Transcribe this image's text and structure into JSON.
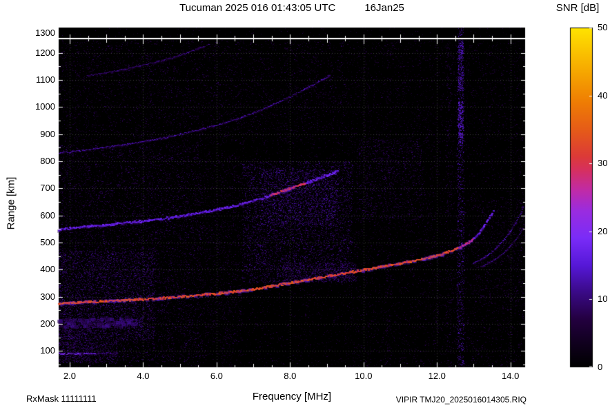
{
  "chart_data": {
    "type": "heatmap",
    "subtype": "ionogram",
    "station": "Tucuman",
    "title": "Tucuman 2025 016 01:43:05 UTC",
    "date_label": "16Jan25",
    "colorbar_label": "SNR [dB]",
    "xlabel": "Frequency [MHz]",
    "ylabel": "Range [km]",
    "rx_mask_label": "RxMask 11111111",
    "file_label": "VIPIR  TMJ20_2025016014305.RIQ",
    "xlim": [
      1.7,
      14.4
    ],
    "ylim_main": [
      40,
      1250
    ],
    "ylim_strip": [
      1255,
      1300
    ],
    "x_ticks": [
      {
        "v": 2,
        "label": "2.0"
      },
      {
        "v": 4,
        "label": "4.0"
      },
      {
        "v": 6,
        "label": "6.0"
      },
      {
        "v": 8,
        "label": "8.0"
      },
      {
        "v": 10,
        "label": "10.0"
      },
      {
        "v": 12,
        "label": "12.0"
      },
      {
        "v": 14,
        "label": "14.0"
      }
    ],
    "y_ticks": [
      100,
      200,
      300,
      400,
      500,
      600,
      700,
      800,
      900,
      1000,
      1100,
      1200,
      1300
    ],
    "colorbar_range": [
      0,
      50
    ],
    "colorbar_ticks": [
      0,
      10,
      20,
      30,
      40,
      50
    ],
    "grid": {
      "x_step": 2,
      "y_step": 100,
      "color": "#3d3d3d"
    },
    "background_color": "#000000",
    "colormap": [
      [
        0.0,
        "#000000"
      ],
      [
        0.07,
        "#10001e"
      ],
      [
        0.14,
        "#23003f"
      ],
      [
        0.22,
        "#3a0a86"
      ],
      [
        0.3,
        "#5618d8"
      ],
      [
        0.38,
        "#7a2cf8"
      ],
      [
        0.46,
        "#9a2ce0"
      ],
      [
        0.52,
        "#c02ba8"
      ],
      [
        0.58,
        "#d63060"
      ],
      [
        0.62,
        "#dc3a38"
      ],
      [
        0.7,
        "#e65c18"
      ],
      [
        0.78,
        "#ef7d04"
      ],
      [
        0.88,
        "#f7ac00"
      ],
      [
        1.0,
        "#ffe400"
      ]
    ],
    "seed": 20250116,
    "traces": [
      {
        "name": "F-region 1-hop O-mode",
        "snr": 33,
        "width": 3,
        "hot": [
          {
            "f": [
              12.6,
              13.0
            ],
            "snr": 27
          },
          {
            "f": [
              13.0,
              13.6
            ],
            "snr": 16
          }
        ],
        "points": [
          [
            1.72,
            272
          ],
          [
            2.0,
            275
          ],
          [
            2.5,
            278
          ],
          [
            3.0,
            281
          ],
          [
            3.5,
            284
          ],
          [
            4.0,
            288
          ],
          [
            4.5,
            292
          ],
          [
            5.0,
            297
          ],
          [
            5.5,
            303
          ],
          [
            6.0,
            309
          ],
          [
            6.5,
            316
          ],
          [
            7.0,
            325
          ],
          [
            7.5,
            336
          ],
          [
            8.0,
            348
          ],
          [
            8.5,
            360
          ],
          [
            9.0,
            372
          ],
          [
            9.5,
            384
          ],
          [
            10.0,
            396
          ],
          [
            10.5,
            408
          ],
          [
            11.0,
            420
          ],
          [
            11.4,
            430
          ],
          [
            11.8,
            442
          ],
          [
            12.1,
            452
          ],
          [
            12.4,
            466
          ],
          [
            12.7,
            484
          ],
          [
            12.95,
            505
          ],
          [
            13.15,
            530
          ],
          [
            13.3,
            556
          ],
          [
            13.45,
            588
          ],
          [
            13.55,
            615
          ]
        ]
      },
      {
        "name": "F-region X-mode cusp outer",
        "snr": 13,
        "width": 2,
        "points": [
          [
            13.0,
            420
          ],
          [
            13.2,
            434
          ],
          [
            13.4,
            452
          ],
          [
            13.6,
            474
          ],
          [
            13.8,
            502
          ],
          [
            14.0,
            536
          ],
          [
            14.15,
            568
          ],
          [
            14.3,
            606
          ],
          [
            14.38,
            635
          ]
        ]
      },
      {
        "name": "F-region X-mode cusp inner",
        "snr": 10,
        "width": 2,
        "points": [
          [
            13.2,
            408
          ],
          [
            13.4,
            420
          ],
          [
            13.6,
            436
          ],
          [
            13.8,
            456
          ],
          [
            14.0,
            482
          ],
          [
            14.2,
            516
          ],
          [
            14.35,
            550
          ],
          [
            14.4,
            572
          ]
        ]
      },
      {
        "name": "2nd hop multiple",
        "snr": 16,
        "width": 3,
        "hot": [
          {
            "f": [
              7.5,
              8.45
            ],
            "snr": 29
          }
        ],
        "points": [
          [
            1.72,
            545
          ],
          [
            2.0,
            550
          ],
          [
            2.5,
            556
          ],
          [
            3.0,
            562
          ],
          [
            3.5,
            569
          ],
          [
            4.0,
            576
          ],
          [
            4.5,
            584
          ],
          [
            5.0,
            594
          ],
          [
            5.5,
            606
          ],
          [
            6.0,
            618
          ],
          [
            6.5,
            632
          ],
          [
            7.0,
            650
          ],
          [
            7.5,
            672
          ],
          [
            8.0,
            696
          ],
          [
            8.5,
            720
          ],
          [
            9.0,
            744
          ],
          [
            9.3,
            760
          ]
        ]
      },
      {
        "name": "3rd hop multiple",
        "snr": 12,
        "width": 2,
        "points": [
          [
            1.72,
            828
          ],
          [
            2.0,
            832
          ],
          [
            2.5,
            840
          ],
          [
            3.0,
            849
          ],
          [
            3.5,
            858
          ],
          [
            4.0,
            869
          ],
          [
            4.5,
            881
          ],
          [
            5.0,
            896
          ],
          [
            5.5,
            912
          ],
          [
            6.0,
            930
          ],
          [
            6.5,
            950
          ],
          [
            7.0,
            974
          ],
          [
            7.5,
            1002
          ],
          [
            8.0,
            1034
          ],
          [
            8.4,
            1062
          ],
          [
            8.8,
            1092
          ],
          [
            9.1,
            1112
          ]
        ]
      },
      {
        "name": "4th hop multiple",
        "snr": 10,
        "width": 2,
        "points": [
          [
            2.5,
            1112
          ],
          [
            3.0,
            1124
          ],
          [
            3.5,
            1136
          ],
          [
            4.0,
            1152
          ],
          [
            4.5,
            1168
          ],
          [
            5.0,
            1188
          ],
          [
            5.5,
            1212
          ],
          [
            5.8,
            1228
          ]
        ]
      },
      {
        "name": "E-layer echo",
        "snr": 18,
        "width": 2,
        "points": [
          [
            1.72,
            87
          ],
          [
            2.05,
            87
          ],
          [
            2.4,
            88
          ],
          [
            2.7,
            88
          ]
        ]
      },
      {
        "name": "E-layer echo faint",
        "snr": 9,
        "width": 2,
        "points": [
          [
            2.7,
            88
          ],
          [
            3.3,
            90
          ]
        ]
      },
      {
        "name": "Es 2nd reflection band",
        "snr": 10,
        "width": 6,
        "diffuse": true,
        "points": [
          [
            1.72,
            198
          ],
          [
            2.3,
            200
          ],
          [
            2.9,
            202
          ],
          [
            3.5,
            203
          ],
          [
            3.9,
            204
          ]
        ]
      }
    ],
    "noise_patches": [
      {
        "f": [
          1.7,
          14.4
        ],
        "r": [
          42,
          1248
        ],
        "count": 13000,
        "snr": [
          2,
          8
        ]
      },
      {
        "f": [
          1.7,
          5.6
        ],
        "r": [
          60,
          860
        ],
        "count": 5200,
        "snr": [
          4,
          11
        ]
      },
      {
        "f": [
          1.7,
          4.3
        ],
        "r": [
          140,
          470
        ],
        "count": 3000,
        "snr": [
          5,
          13
        ]
      },
      {
        "f": [
          6.7,
          9.7
        ],
        "r": [
          350,
          800
        ],
        "count": 4200,
        "snr": [
          5,
          13
        ]
      },
      {
        "f": [
          7.2,
          9.3
        ],
        "r": [
          560,
          770
        ],
        "count": 1400,
        "snr": [
          7,
          14
        ]
      },
      {
        "f": [
          7.8,
          9.8
        ],
        "r": [
          355,
          425
        ],
        "count": 700,
        "snr": [
          6,
          12
        ]
      },
      {
        "f": [
          9.8,
          11.6
        ],
        "r": [
          580,
          880
        ],
        "count": 900,
        "snr": [
          5,
          11
        ]
      },
      {
        "f": [
          1.7,
          9.5
        ],
        "r": [
          860,
          1245
        ],
        "count": 2200,
        "snr": [
          4,
          10
        ]
      },
      {
        "f": [
          9.5,
          14.4
        ],
        "r": [
          42,
          1245
        ],
        "count": 2300,
        "snr": [
          3,
          9
        ]
      },
      {
        "f": [
          5.6,
          6.7
        ],
        "r": [
          80,
          830
        ],
        "count": 900,
        "snr": [
          4,
          9
        ]
      },
      {
        "f": [
          1.7,
          3.3
        ],
        "r": [
          55,
          135
        ],
        "count": 600,
        "snr": [
          5,
          12
        ]
      },
      {
        "f": [
          1.7,
          4.0
        ],
        "r": [
          185,
          218
        ],
        "count": 550,
        "snr": [
          6,
          13
        ]
      },
      {
        "f": [
          12.55,
          12.74
        ],
        "r": [
          42,
          1248
        ],
        "count": 850,
        "snr": [
          7,
          16
        ]
      },
      {
        "f": [
          12.58,
          12.72
        ],
        "r": [
          860,
          1020
        ],
        "count": 260,
        "snr": [
          11,
          19
        ]
      },
      {
        "f": [
          12.58,
          12.72
        ],
        "r": [
          1060,
          1245
        ],
        "count": 260,
        "snr": [
          9,
          17
        ]
      },
      {
        "f": [
          12.25,
          12.4
        ],
        "r": [
          42,
          1248
        ],
        "count": 220,
        "snr": [
          5,
          10
        ]
      },
      {
        "f": [
          10.6,
          10.75
        ],
        "r": [
          42,
          1248
        ],
        "count": 160,
        "snr": [
          4,
          9
        ]
      },
      {
        "f": [
          4.1,
          4.25
        ],
        "r": [
          42,
          1248
        ],
        "count": 130,
        "snr": [
          4,
          9
        ]
      },
      {
        "f": [
          13.0,
          14.4
        ],
        "r": [
          250,
          660
        ],
        "count": 450,
        "snr": [
          4,
          10
        ]
      },
      {
        "f": [
          1.7,
          2.6
        ],
        "r": [
          60,
          185
        ],
        "count": 350,
        "snr": [
          5,
          12
        ]
      }
    ],
    "strip_noise": {
      "count": 130,
      "snr": [
        3,
        9
      ]
    },
    "strip_interference": {
      "f": [
        12.55,
        12.73
      ],
      "count": 25,
      "snr": [
        8,
        16
      ]
    }
  }
}
